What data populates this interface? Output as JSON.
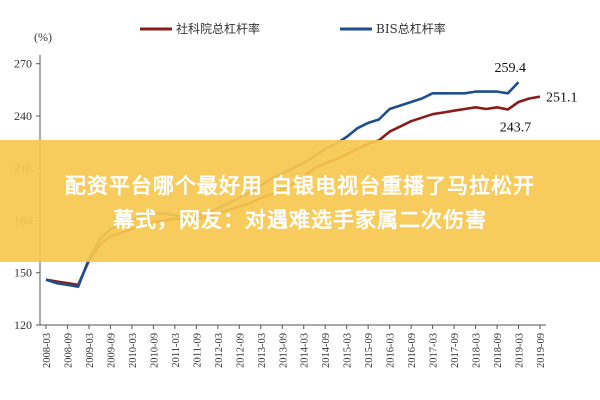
{
  "chart_data": {
    "type": "line",
    "ylabel": "(%)",
    "ylim": [
      120,
      275
    ],
    "yticks": [
      120,
      150,
      180,
      210,
      240,
      270
    ],
    "xticks": [
      "2008-03",
      "2008-09",
      "2009-03",
      "2009-09",
      "2010-03",
      "2010-09",
      "2011-03",
      "2011-09",
      "2012-03",
      "2012-09",
      "2013-03",
      "2013-09",
      "2014-03",
      "2014-09",
      "2015-03",
      "2015-09",
      "2016-03",
      "2016-09",
      "2017-03",
      "2017-09",
      "2018-03",
      "2018-09",
      "2019-03",
      "2019-09"
    ],
    "grid": false,
    "legend": "top",
    "series": [
      {
        "name": "社科院总杠杆率",
        "color": "#8b1a1a",
        "values": [
          [
            "2008-03",
            146
          ],
          [
            "2008-06",
            145
          ],
          [
            "2008-09",
            144
          ],
          [
            "2008-12",
            143
          ],
          [
            "2009-03",
            157
          ],
          [
            "2009-06",
            166
          ],
          [
            "2009-09",
            171
          ],
          [
            "2009-12",
            173
          ],
          [
            "2010-03",
            175
          ],
          [
            "2010-06",
            177
          ],
          [
            "2010-09",
            179
          ],
          [
            "2010-12",
            180
          ],
          [
            "2011-03",
            181
          ],
          [
            "2011-06",
            181
          ],
          [
            "2011-09",
            181
          ],
          [
            "2011-12",
            182
          ],
          [
            "2012-03",
            184
          ],
          [
            "2012-06",
            186
          ],
          [
            "2012-09",
            188
          ],
          [
            "2012-12",
            190
          ],
          [
            "2013-03",
            193
          ],
          [
            "2013-06",
            195
          ],
          [
            "2013-09",
            198
          ],
          [
            "2013-12",
            201
          ],
          [
            "2014-03",
            205
          ],
          [
            "2014-06",
            210
          ],
          [
            "2014-09",
            213
          ],
          [
            "2014-12",
            215
          ],
          [
            "2015-03",
            218
          ],
          [
            "2015-06",
            221
          ],
          [
            "2015-09",
            224
          ],
          [
            "2015-12",
            226
          ],
          [
            "2016-03",
            231
          ],
          [
            "2016-06",
            234
          ],
          [
            "2016-09",
            237
          ],
          [
            "2016-12",
            239
          ],
          [
            "2017-03",
            241
          ],
          [
            "2017-06",
            242
          ],
          [
            "2017-09",
            243
          ],
          [
            "2017-12",
            244
          ],
          [
            "2018-03",
            245
          ],
          [
            "2018-06",
            244
          ],
          [
            "2018-09",
            245
          ],
          [
            "2018-12",
            243.7
          ],
          [
            "2019-03",
            248
          ],
          [
            "2019-06",
            250
          ],
          [
            "2019-09",
            251.1
          ]
        ]
      },
      {
        "name": "BIS总杠杆率",
        "color": "#1f4e8c",
        "values": [
          [
            "2008-03",
            146
          ],
          [
            "2008-06",
            144
          ],
          [
            "2008-09",
            143
          ],
          [
            "2008-12",
            142
          ],
          [
            "2009-03",
            158
          ],
          [
            "2009-06",
            169
          ],
          [
            "2009-09",
            175
          ],
          [
            "2009-12",
            178
          ],
          [
            "2010-03",
            180
          ],
          [
            "2010-06",
            183
          ],
          [
            "2010-09",
            184
          ],
          [
            "2010-12",
            184
          ],
          [
            "2011-03",
            183
          ],
          [
            "2011-06",
            182
          ],
          [
            "2011-09",
            183
          ],
          [
            "2011-12",
            184
          ],
          [
            "2012-03",
            187
          ],
          [
            "2012-06",
            190
          ],
          [
            "2012-09",
            193
          ],
          [
            "2012-12",
            196
          ],
          [
            "2013-03",
            200
          ],
          [
            "2013-06",
            204
          ],
          [
            "2013-09",
            207
          ],
          [
            "2013-12",
            210
          ],
          [
            "2014-03",
            213
          ],
          [
            "2014-06",
            217
          ],
          [
            "2014-09",
            221
          ],
          [
            "2014-12",
            224
          ],
          [
            "2015-03",
            228
          ],
          [
            "2015-06",
            233
          ],
          [
            "2015-09",
            236
          ],
          [
            "2015-12",
            238
          ],
          [
            "2016-03",
            244
          ],
          [
            "2016-06",
            246
          ],
          [
            "2016-09",
            248
          ],
          [
            "2016-12",
            250
          ],
          [
            "2017-03",
            253
          ],
          [
            "2017-06",
            253
          ],
          [
            "2017-09",
            253
          ],
          [
            "2017-12",
            253
          ],
          [
            "2018-03",
            254
          ],
          [
            "2018-06",
            254
          ],
          [
            "2018-09",
            254
          ],
          [
            "2018-12",
            253
          ],
          [
            "2019-03",
            259.4
          ]
        ]
      }
    ],
    "annotations": [
      {
        "text": "259.4",
        "series": 1,
        "at": "2019-03"
      },
      {
        "text": "251.1",
        "series": 0,
        "at": "2019-09"
      },
      {
        "text": "243.7",
        "series": 0,
        "at": "2018-12"
      }
    ]
  },
  "banner": {
    "line1": "配资平台哪个最好用 白银电视台重播了马拉松开",
    "line2": "幕式，网友：对遇难选手家属二次伤害"
  }
}
